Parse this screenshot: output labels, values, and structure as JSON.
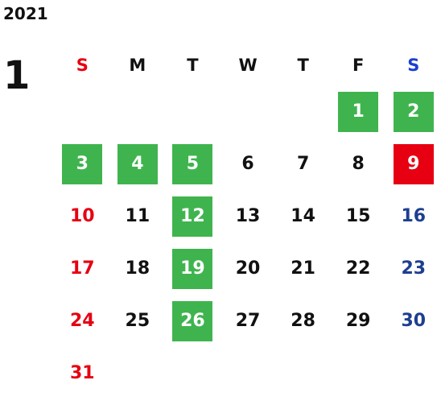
{
  "year": "2021",
  "month": "1",
  "colors": {
    "sunday": "#e60012",
    "saturday": "#1d3f91",
    "weekday": "#111111",
    "holiday_bg": "#e60012",
    "highlight_bg": "#3fb44e"
  },
  "weekdays": [
    "S",
    "M",
    "T",
    "W",
    "T",
    "F",
    "S"
  ],
  "weeks": [
    [
      {
        "d": ""
      },
      {
        "d": ""
      },
      {
        "d": ""
      },
      {
        "d": ""
      },
      {
        "d": ""
      },
      {
        "d": "1",
        "bg": "green"
      },
      {
        "d": "2",
        "bg": "green"
      }
    ],
    [
      {
        "d": "3",
        "bg": "green"
      },
      {
        "d": "4",
        "bg": "green"
      },
      {
        "d": "5",
        "bg": "green"
      },
      {
        "d": "6"
      },
      {
        "d": "7"
      },
      {
        "d": "8"
      },
      {
        "d": "9",
        "bg": "red"
      }
    ],
    [
      {
        "d": "10"
      },
      {
        "d": "11"
      },
      {
        "d": "12",
        "bg": "green"
      },
      {
        "d": "13"
      },
      {
        "d": "14"
      },
      {
        "d": "15"
      },
      {
        "d": "16"
      }
    ],
    [
      {
        "d": "17"
      },
      {
        "d": "18"
      },
      {
        "d": "19",
        "bg": "green"
      },
      {
        "d": "20"
      },
      {
        "d": "21"
      },
      {
        "d": "22"
      },
      {
        "d": "23"
      }
    ],
    [
      {
        "d": "24"
      },
      {
        "d": "25"
      },
      {
        "d": "26",
        "bg": "green"
      },
      {
        "d": "27"
      },
      {
        "d": "28"
      },
      {
        "d": "29"
      },
      {
        "d": "30"
      }
    ],
    [
      {
        "d": "31"
      },
      {
        "d": ""
      },
      {
        "d": ""
      },
      {
        "d": ""
      },
      {
        "d": ""
      },
      {
        "d": ""
      },
      {
        "d": ""
      }
    ]
  ]
}
